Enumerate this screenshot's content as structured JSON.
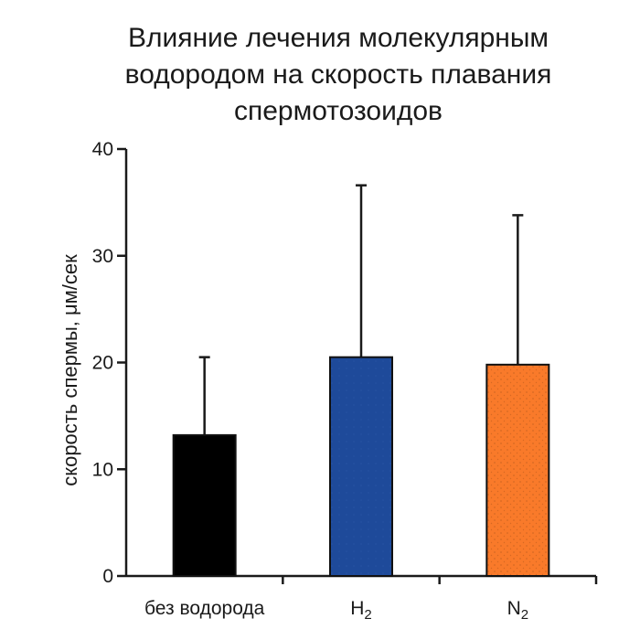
{
  "chart_data": {
    "type": "bar",
    "title_lines": [
      "Влияние лечения молекулярным",
      "водородом на скорость плавания",
      "спермотозоидов"
    ],
    "xlabel": "",
    "ylabel": "скорость спермы, μм/сек",
    "categories": [
      {
        "base": "без водорода",
        "sub": ""
      },
      {
        "base": "H",
        "sub": "2"
      },
      {
        "base": "N",
        "sub": "2"
      }
    ],
    "values": [
      13.2,
      20.5,
      19.8
    ],
    "errors_upper": [
      20.5,
      36.6,
      33.8
    ],
    "ylim": [
      0,
      40
    ],
    "yticks": [
      0,
      10,
      20,
      30,
      40
    ],
    "grid": false,
    "legend": "none",
    "colors": {
      "bars": [
        "#000000",
        "#1e4a9a",
        "#f97a2a"
      ],
      "axis": "#1a1a1a",
      "dots": "#c0601f"
    },
    "bar_textures": [
      "none",
      "dots-light",
      "dots"
    ]
  }
}
